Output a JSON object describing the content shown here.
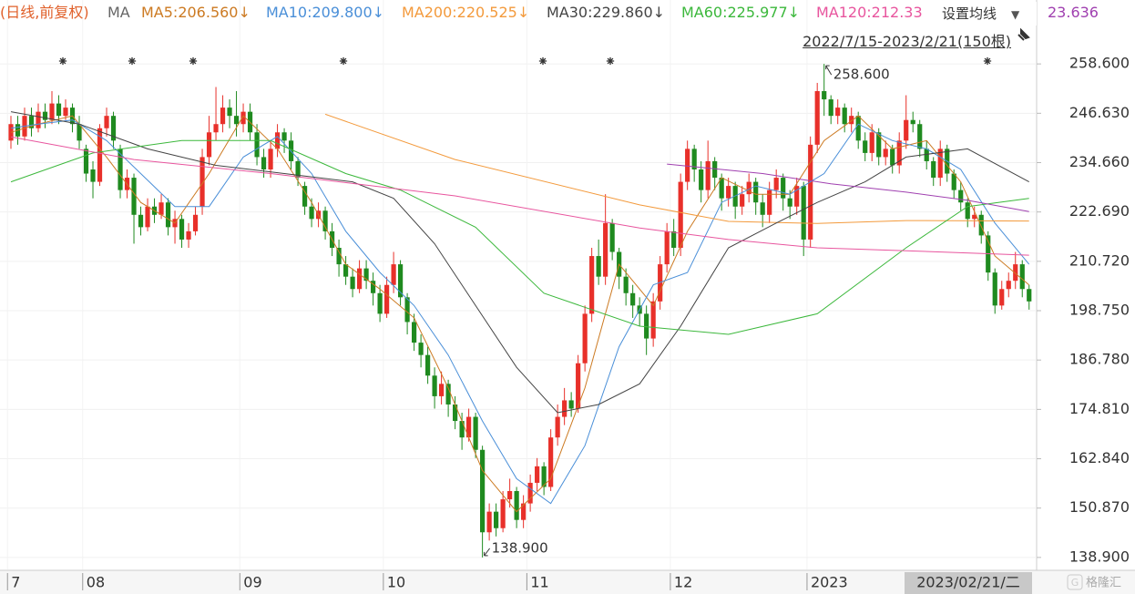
{
  "chart_data": {
    "type": "candlestick",
    "title": "(日线,前复权)",
    "ma_label": "MA",
    "settings_button": "设置均线",
    "date_range": "2022/7/15-2023/2/21(150根)",
    "crosshair_label": "2023/02/21/二",
    "watermark": "格隆汇",
    "grid": true,
    "up_color": "#e8302a",
    "down_color": "#1f8a1f",
    "xlim": [
      -1.6,
      150.1
    ],
    "ylim": [
      136.0,
      274.1
    ],
    "yticks": [
      {
        "value": 258.6,
        "label": "258.600"
      },
      {
        "value": 246.63,
        "label": "246.630"
      },
      {
        "value": 234.66,
        "label": "234.660"
      },
      {
        "value": 222.69,
        "label": "222.690"
      },
      {
        "value": 210.72,
        "label": "210.720"
      },
      {
        "value": 198.75,
        "label": "198.750"
      },
      {
        "value": 186.78,
        "label": "186.780"
      },
      {
        "value": 174.81,
        "label": "174.810"
      },
      {
        "value": 162.84,
        "label": "162.840"
      },
      {
        "value": 150.87,
        "label": "150.870"
      },
      {
        "value": 138.9,
        "label": "138.900"
      }
    ],
    "xticks": [
      {
        "value": 0,
        "label": "7"
      },
      {
        "value": 11,
        "label": "08"
      },
      {
        "value": 34,
        "label": "09"
      },
      {
        "value": 55,
        "label": "10"
      },
      {
        "value": 76,
        "label": "11"
      },
      {
        "value": 97,
        "label": "12"
      },
      {
        "value": 117,
        "label": "2023"
      }
    ],
    "candles": {
      "open": [
        240,
        244,
        241,
        246,
        243,
        247,
        245,
        249,
        246,
        248,
        244,
        238,
        233,
        230,
        243,
        246,
        238,
        228,
        231,
        222,
        219,
        224,
        222,
        225,
        219,
        221,
        216,
        218,
        224,
        236,
        242,
        244,
        248,
        246,
        244,
        247,
        242,
        236,
        233,
        238,
        242,
        240,
        235,
        229,
        224,
        221,
        223,
        218,
        214,
        210,
        207,
        204,
        209,
        206,
        203,
        198,
        205,
        210,
        202,
        196,
        191,
        188,
        183,
        178,
        181,
        176,
        172,
        168,
        173,
        165,
        145,
        150,
        146,
        153,
        155,
        148,
        152,
        157,
        161,
        156,
        168,
        173,
        177,
        175,
        186,
        198,
        212,
        207,
        220,
        213,
        207,
        203,
        200,
        198,
        192,
        201,
        210,
        218,
        214,
        230,
        238,
        233,
        228,
        235,
        231,
        226,
        229,
        224,
        227,
        230,
        225,
        222,
        228,
        231,
        226,
        224,
        229,
        216,
        239,
        252,
        250,
        246,
        248,
        244,
        246,
        240,
        237,
        242,
        236,
        238,
        234,
        240,
        245,
        244,
        238,
        235,
        231,
        238,
        232,
        228,
        225,
        221,
        222,
        217,
        208,
        200,
        204,
        206,
        210,
        204
      ],
      "high": [
        246,
        246,
        248,
        248,
        249,
        249,
        252,
        251,
        250,
        249,
        246,
        239,
        235,
        244,
        248,
        247,
        239,
        233,
        232,
        224,
        226,
        226,
        227,
        226,
        223,
        222,
        220,
        224,
        238,
        246,
        253,
        251,
        250,
        252,
        249,
        249,
        244,
        238,
        240,
        244,
        243,
        242,
        236,
        230,
        226,
        225,
        224,
        220,
        216,
        212,
        209,
        211,
        211,
        208,
        205,
        207,
        213,
        211,
        203,
        198,
        193,
        190,
        185,
        184,
        182,
        178,
        174,
        175,
        174,
        166,
        152,
        152,
        155,
        158,
        156,
        154,
        159,
        163,
        162,
        170,
        176,
        180,
        179,
        188,
        200,
        214,
        216,
        227,
        221,
        214,
        209,
        205,
        202,
        200,
        203,
        212,
        220,
        221,
        232,
        240,
        239,
        235,
        240,
        236,
        232,
        231,
        230,
        229,
        232,
        231,
        227,
        230,
        233,
        232,
        228,
        231,
        230,
        241,
        254,
        258.6,
        251,
        250,
        249,
        248,
        247,
        242,
        244,
        243,
        240,
        239,
        242,
        251,
        247,
        245,
        240,
        236,
        240,
        239,
        233,
        230,
        226,
        224,
        223,
        218,
        209,
        206,
        208,
        213,
        211,
        205
      ],
      "low": [
        238,
        239,
        240,
        241,
        242,
        243,
        244,
        244,
        245,
        242,
        238,
        230,
        226,
        229,
        241,
        238,
        226,
        226,
        215,
        217,
        218,
        220,
        221,
        217,
        215,
        214,
        214,
        217,
        222,
        234,
        240,
        242,
        243,
        241,
        242,
        240,
        234,
        231,
        231,
        236,
        237,
        233,
        229,
        222,
        219,
        219,
        216,
        212,
        207,
        205,
        202,
        203,
        204,
        200,
        196,
        197,
        203,
        200,
        193,
        189,
        185,
        181,
        175,
        176,
        173,
        170,
        165,
        167,
        163,
        138.9,
        143,
        144,
        145,
        151,
        146,
        146,
        150,
        155,
        154,
        155,
        166,
        171,
        173,
        174,
        184,
        196,
        205,
        205,
        211,
        204,
        200,
        197,
        195,
        188,
        190,
        199,
        208,
        212,
        212,
        228,
        230,
        225,
        226,
        228,
        223,
        224,
        221,
        222,
        225,
        222,
        219,
        220,
        226,
        223,
        221,
        222,
        212,
        214,
        237,
        246,
        244,
        244,
        242,
        242,
        238,
        235,
        235,
        234,
        234,
        232,
        232,
        238,
        242,
        236,
        233,
        229,
        229,
        230,
        226,
        223,
        219,
        219,
        215,
        206,
        198,
        199,
        202,
        204,
        202,
        199
      ],
      "close": [
        244,
        241,
        246,
        243,
        247,
        245,
        249,
        246,
        248,
        244,
        240,
        232,
        230,
        243,
        246,
        240,
        228,
        231,
        222,
        219,
        224,
        222,
        225,
        219,
        221,
        216,
        218,
        222,
        236,
        242,
        244,
        248,
        246,
        244,
        247,
        242,
        236,
        233,
        238,
        242,
        240,
        235,
        231,
        224,
        221,
        223,
        218,
        214,
        210,
        207,
        204,
        209,
        206,
        203,
        198,
        205,
        210,
        202,
        196,
        191,
        188,
        183,
        178,
        181,
        176,
        172,
        168,
        173,
        165,
        145,
        150,
        146,
        153,
        155,
        148,
        152,
        157,
        161,
        156,
        168,
        173,
        177,
        175,
        186,
        198,
        212,
        207,
        220,
        213,
        207,
        203,
        200,
        198,
        192,
        201,
        210,
        218,
        214,
        230,
        238,
        233,
        228,
        235,
        231,
        226,
        229,
        224,
        227,
        230,
        225,
        222,
        228,
        231,
        226,
        224,
        229,
        216,
        239,
        252,
        250,
        246,
        248,
        244,
        246,
        240,
        237,
        242,
        236,
        238,
        234,
        240,
        245,
        244,
        238,
        235,
        231,
        238,
        232,
        228,
        225,
        221,
        222,
        217,
        208,
        200,
        204,
        206,
        210,
        204,
        201
      ]
    },
    "series": [
      {
        "name": "MA5:206.560↓",
        "color": "#cc7a22",
        "x": [
          0,
          4,
          9,
          14,
          19,
          24,
          29,
          34,
          39,
          44,
          49,
          54,
          59,
          64,
          69,
          74,
          79,
          84,
          89,
          94,
          99,
          104,
          109,
          114,
          119,
          124,
          129,
          134,
          139,
          144,
          149
        ],
        "values": [
          242,
          244,
          246,
          236,
          225,
          220,
          232,
          246,
          238,
          225,
          210,
          204,
          197,
          180,
          160,
          150,
          158,
          180,
          210,
          200,
          218,
          231,
          227,
          227,
          240,
          246,
          238,
          240,
          230,
          212,
          205
        ]
      },
      {
        "name": "MA10:209.800↓",
        "color": "#4a8fd8",
        "x": [
          0,
          4,
          9,
          14,
          19,
          24,
          29,
          34,
          39,
          44,
          49,
          54,
          59,
          64,
          69,
          74,
          79,
          84,
          89,
          94,
          99,
          104,
          109,
          114,
          119,
          124,
          129,
          134,
          139,
          144,
          149
        ],
        "values": [
          243,
          244,
          245,
          240,
          232,
          224,
          224,
          236,
          241,
          232,
          218,
          208,
          200,
          188,
          172,
          158,
          152,
          166,
          190,
          205,
          208,
          225,
          229,
          227,
          232,
          244,
          240,
          238,
          233,
          220,
          210
        ]
      },
      {
        "name": "MA200:220.525↓",
        "color": "#f39a3c",
        "x": [
          46,
          65,
          92,
          105,
          118,
          131,
          149
        ],
        "values": [
          246.4,
          235.4,
          224.4,
          220.4,
          219.9,
          220.6,
          220.5
        ]
      },
      {
        "name": "MA30:229.860↓",
        "color": "#444444",
        "x": [
          0,
          10,
          20,
          30,
          40,
          50,
          56,
          62,
          68,
          74,
          80,
          86,
          92,
          98,
          105,
          112,
          118,
          125,
          131,
          140,
          149
        ],
        "values": [
          247,
          244,
          238,
          234,
          232,
          230,
          226,
          215,
          200,
          185,
          174,
          176,
          181,
          195,
          214,
          220,
          225,
          230,
          236,
          238,
          230
        ]
      },
      {
        "name": "MA60:225.977↓",
        "color": "#3cb83c",
        "x": [
          0,
          12,
          25,
          38,
          49,
          57,
          68,
          78,
          92,
          105,
          118,
          131,
          140,
          149
        ],
        "values": [
          230,
          237,
          240,
          240,
          232,
          228,
          219,
          203,
          195,
          193,
          198,
          214,
          224,
          226
        ]
      },
      {
        "name": "MA120:212.33",
        "color": "#e8559e",
        "x": [
          0,
          18,
          38,
          65,
          92,
          105,
          118,
          131,
          149
        ],
        "values": [
          240.9,
          235.4,
          232,
          226.6,
          218.8,
          216,
          214,
          213.3,
          212.2
        ]
      },
      {
        "name": "23.636",
        "color": "#a040b0",
        "x": [
          96,
          110,
          120,
          131,
          140,
          149
        ],
        "values": [
          234.3,
          232,
          229.5,
          227.5,
          225.5,
          222.8
        ]
      }
    ],
    "annotations": [
      {
        "x": 119,
        "value": 258.6,
        "label": "258.600"
      },
      {
        "x": 69,
        "value": 138.9,
        "label": "138.900"
      }
    ]
  }
}
